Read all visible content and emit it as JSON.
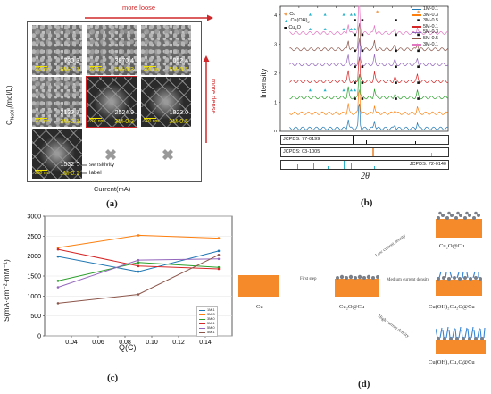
{
  "panel_a": {
    "label": "(a)",
    "top_arrow_text": "more loose",
    "right_arrow_text": "more dense",
    "y_axis_label": "C",
    "y_axis_subscript": "NaOH",
    "y_axis_unit": "(mol/L)",
    "x_axis_label": "Current(mA)",
    "scale_bar": "200 nm",
    "images": [
      {
        "value": "1730.3",
        "label": "5M-0.1"
      },
      {
        "value": "3870.4",
        "label": "5M-0.3"
      },
      {
        "value": "1052.4",
        "label": "5M-0.5"
      },
      {
        "value": "2133.7",
        "label": "3M-0.1"
      },
      {
        "value": "2524.9",
        "label": "3M-0.3"
      },
      {
        "value": "1823.0",
        "label": "3M-0.5"
      },
      {
        "value": "1532.0",
        "label": "1M-0.1"
      }
    ],
    "annotation_sensitivity": "sensitivity",
    "annotation_label": "label",
    "accent_red": "#d0282a",
    "label_yellow": "#f3e400"
  },
  "panel_b": {
    "label": "(b)",
    "y_axis_label": "Intensity",
    "x_axis_label": "2θ",
    "x_ticks": [
      "0",
      "10",
      "20",
      "30",
      "40",
      "50",
      "60",
      "70",
      "80",
      "90"
    ],
    "y_ticks": [
      "0",
      "1",
      "2",
      "3",
      "4"
    ],
    "marker_legend": [
      {
        "symbol": "◆",
        "name": "Cu",
        "color": "#f0a05a"
      },
      {
        "symbol": "▲",
        "name": "Cu(OH)",
        "sub": "2",
        "color": "#27b3c9"
      },
      {
        "symbol": "■",
        "name": "Cu",
        "sub": "2",
        "tail": "O",
        "color": "#111111"
      }
    ],
    "series_legend": [
      {
        "name": "1M-0.1",
        "color": "#1f77b4"
      },
      {
        "name": "3M-0.3",
        "color": "#ff7f0e"
      },
      {
        "name": "3M-0.5",
        "color": "#2ca02c"
      },
      {
        "name": "5M-0.1",
        "color": "#d62728"
      },
      {
        "name": "5M-0.3",
        "color": "#9467bd"
      },
      {
        "name": "5M-0.5",
        "color": "#8c564b"
      },
      {
        "name": "3M-0.1",
        "color": "#e377c2"
      }
    ],
    "jcpds": [
      "JCPDS: 77-0199",
      "JCPDS: 03-1005",
      "JCPDS: 72-0140"
    ]
  },
  "panel_c": {
    "label": "(c)",
    "x_axis_label": "Q(C)",
    "y_axis_label": "S(mA·cm⁻²·mM⁻¹)",
    "chart_data": {
      "type": "line",
      "x": [
        0.03,
        0.09,
        0.15
      ],
      "xlim": [
        0.02,
        0.16
      ],
      "ylim": [
        0,
        3000
      ],
      "x_ticks": [
        "0.04",
        "0.06",
        "0.08",
        "0.10",
        "0.12",
        "0.14"
      ],
      "y_ticks": [
        "0",
        "500",
        "1000",
        "1500",
        "2000",
        "2500",
        "3000"
      ],
      "series": [
        {
          "name": "1M-1",
          "color": "#1f77b4",
          "values": [
            1990,
            1610,
            2130
          ]
        },
        {
          "name": "3M-3",
          "color": "#ff7f0e",
          "values": [
            2210,
            2520,
            2450
          ]
        },
        {
          "name": "3M-0",
          "color": "#2ca02c",
          "values": [
            1380,
            1840,
            1720
          ]
        },
        {
          "name": "5M-1",
          "color": "#d62728",
          "values": [
            2170,
            1750,
            1680
          ]
        },
        {
          "name": "5M-0",
          "color": "#9467bd",
          "values": [
            1220,
            1900,
            1930
          ]
        },
        {
          "name": "5M-1",
          "color": "#8c564b",
          "values": [
            820,
            1040,
            2030
          ]
        }
      ]
    }
  },
  "panel_d": {
    "label": "(d)",
    "cu": "Cu",
    "cu2o_cu": "Cu₂O@Cu",
    "first_step": "First step",
    "low_density": "Low current density",
    "medium_density": "Medium current density",
    "high_density": "High current density",
    "low_product": "Cu₂O@Cu",
    "medium_product": "Cu(OH)₂Cu₂O@Cu",
    "high_product": "Cu(OH)₂Cu₂O@Cu",
    "copper_color": "#f58a2a"
  }
}
